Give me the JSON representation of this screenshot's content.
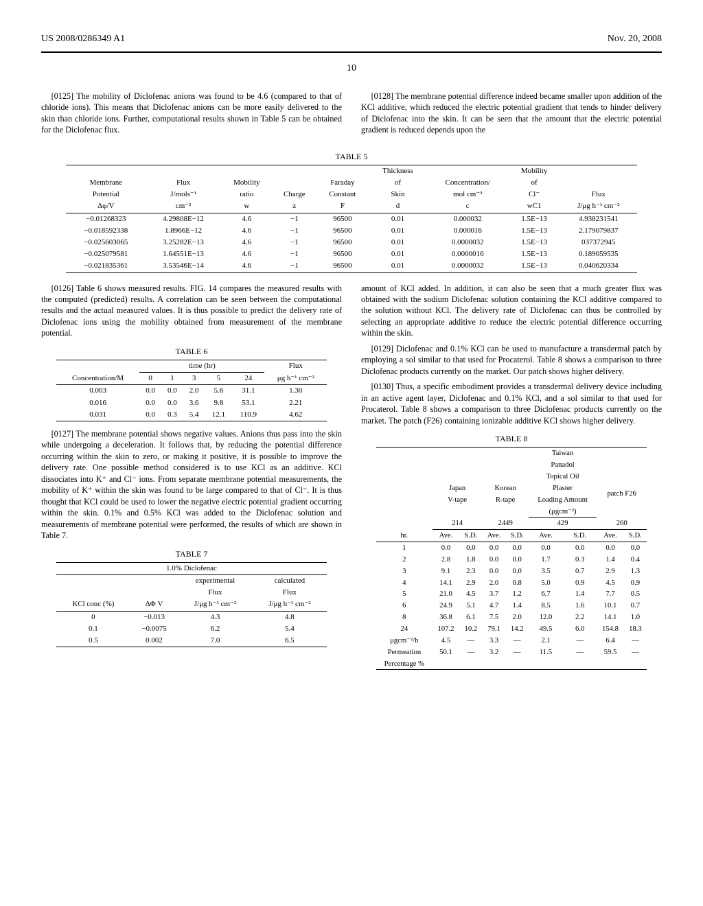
{
  "header": {
    "left": "US 2008/0286349 A1",
    "right": "Nov. 20, 2008"
  },
  "page_number": "10",
  "paras": {
    "p0125": "[0125]  The mobility of Diclofenac anions was found to be 4.6 (compared to that of chloride ions). This means that Diclofenac anions can be more easily delivered to the skin than chloride ions. Further, computational results shown in Table 5 can be obtained for the Diclofenac flux.",
    "p0126": "[0126]  Table 6 shows measured results. FIG. 14 compares the measured results with the computed (predicted) results. A correlation can be seen between the computational results and the actual measured values. It is thus possible to predict the delivery rate of Diclofenac ions using the mobility obtained from measurement of the membrane potential.",
    "p0127": "[0127]  The membrane potential shows negative values. Anions thus pass into the skin while undergoing a deceleration. It follows that, by reducing the potential difference occurring within the skin to zero, or making it positive, it is possible to improve the delivery rate. One possible method considered is to use KCl as an additive. KCl dissociates into K⁺ and Cl⁻ ions. From separate membrane potential measurements, the mobility of K⁺ within the skin was found to be large compared to that of Cl⁻. It is thus thought that KCl could be used to lower the negative electric potential gradient occurring within the skin. 0.1% and 0.5% KCl was added to the Diclofenac solution and measurements of membrane potential were performed, the results of which are shown in Table 7.",
    "p0128": "[0128]  The membrane potential difference indeed became smaller upon addition of the KCl additive, which reduced the electric potential gradient that tends to hinder delivery of Diclofenac into the skin. It can be seen that the amount that the electric potential gradient is reduced depends upon the",
    "p_cont": "amount of KCl added. In addition, it can also be seen that a much greater flux was obtained with the sodium Diclofenac solution containing the KCl additive compared to the solution without KCl. The delivery rate of Diclofenac can thus be controlled by selecting an appropriate additive to reduce the electric potential difference occurring within the skin.",
    "p0129": "[0129]  Diclofenac and 0.1% KCl can be used to manufacture a transdermal patch by employing a sol similar to that used for Procaterol. Table 8 shows a comparison to three Diclofenac products currently on the market. Our patch shows higher delivery.",
    "p0130": "[0130]  Thus, a specific embodiment provides a transdermal delivery device including in an active agent layer, Diclofenac and 0.1% KCl, and a sol similar to that used for Procaterol. Table 8 shows a comparison to three Diclofenac products currently on the market. The patch (F26) containing ionizable additive KCl shows higher delivery."
  },
  "table5": {
    "caption": "TABLE 5",
    "headers": [
      [
        "Membrane",
        "Potential",
        "Δφ/V"
      ],
      [
        "Flux",
        "J/mols⁻¹",
        "cm⁻²"
      ],
      [
        "Mobility",
        "ratio",
        "w"
      ],
      [
        "",
        "Charge",
        "z"
      ],
      [
        "Faraday",
        "Constant",
        "F"
      ],
      [
        "Thickness",
        "of",
        "Skin",
        "d"
      ],
      [
        "Concentration/",
        "mol cm⁻³",
        "c"
      ],
      [
        "Mobility",
        "of",
        "Cl⁻",
        "wC1"
      ],
      [
        "",
        "Flux",
        "J/μg h⁻¹ cm⁻²"
      ]
    ],
    "rows": [
      [
        "−0.01268323",
        "4.29808E−12",
        "4.6",
        "−1",
        "96500",
        "0.01",
        "0.000032",
        "1.5E−13",
        "4.938231541"
      ],
      [
        "−0.018592338",
        "1.8966E−12",
        "4.6",
        "−1",
        "96500",
        "0.01",
        "0.000016",
        "1.5E−13",
        "2.179079837"
      ],
      [
        "−0.025603065",
        "3.25282E−13",
        "4.6",
        "−1",
        "96500",
        "0.01",
        "0.0000032",
        "1.5E−13",
        "037372945"
      ],
      [
        "−0.025079581",
        "1.64551E−13",
        "4.6",
        "−1",
        "96500",
        "0.01",
        "0.0000016",
        "1.5E−13",
        "0.189059535"
      ],
      [
        "−0.021835361",
        "3.53546E−14",
        "4.6",
        "−1",
        "96500",
        "0.01",
        "0.0000032",
        "1.5E−13",
        "0.040620334"
      ]
    ]
  },
  "table6": {
    "caption": "TABLE 6",
    "time_header": "time (hr)",
    "flux_header": "Flux",
    "conc_header": "Concentration/M",
    "time_cols": [
      "0",
      "1",
      "3",
      "5",
      "24"
    ],
    "flux_unit": "μg h⁻¹ cm⁻²",
    "rows": [
      [
        "0.003",
        "0.0",
        "0.0",
        "2.0",
        "5.6",
        "31.1",
        "1.30"
      ],
      [
        "0.016",
        "0.0",
        "0.0",
        "3.6",
        "9.8",
        "53.1",
        "2.21"
      ],
      [
        "0.031",
        "0.0",
        "0.3",
        "5.4",
        "12.1",
        "110.9",
        "4.62"
      ]
    ]
  },
  "table7": {
    "caption": "TABLE 7",
    "group_header": "1.0% Diclofenac",
    "col_headers": [
      "KCl conc (%)",
      "ΔΦ V",
      "experimental Flux J/μg h⁻¹ cm⁻²",
      "calculated Flux J/μg h⁻¹ cm⁻²"
    ],
    "col_hdr_stack": [
      [
        "",
        "",
        "experimental",
        "calculated"
      ],
      [
        "",
        "",
        "Flux",
        "Flux"
      ],
      [
        "KCl conc (%)",
        "ΔΦ V",
        "J/μg h⁻¹ cm⁻²",
        "J/μg h⁻¹ cm⁻²"
      ]
    ],
    "rows": [
      [
        "0",
        "−0.013",
        "4.3",
        "4.8"
      ],
      [
        "0.1",
        "−0.0075",
        "6.2",
        "5.4"
      ],
      [
        "0.5",
        "0.002",
        "7.0",
        "6.5"
      ]
    ]
  },
  "table8": {
    "caption": "TABLE 8",
    "group_stack_lines": [
      "Taiwan",
      "Panadol",
      "Topical Oil",
      "Plaster"
    ],
    "group_left": [
      "Japan",
      "V-tape"
    ],
    "group_mid": [
      "Korean",
      "R-tape"
    ],
    "group_right": "patch F26",
    "loading_lines": [
      "Loading Amount",
      "(μgcm⁻²)"
    ],
    "loading_values": [
      "214",
      "2449",
      "429",
      "260"
    ],
    "hr_label": "hr.",
    "pair_labels": [
      "Ave.",
      "S.D."
    ],
    "rows": [
      [
        "1",
        "0.0",
        "0.0",
        "0.0",
        "0.0",
        "0.0",
        "0.0",
        "0.0",
        "0.0"
      ],
      [
        "2",
        "2.8",
        "1.8",
        "0.0",
        "0.0",
        "1.7",
        "0.3",
        "1.4",
        "0.4"
      ],
      [
        "3",
        "9.1",
        "2.3",
        "0.0",
        "0.0",
        "3.5",
        "0.7",
        "2.9",
        "1.3"
      ],
      [
        "4",
        "14.1",
        "2.9",
        "2.0",
        "0.8",
        "5.0",
        "0.9",
        "4.5",
        "0.9"
      ],
      [
        "5",
        "21.0",
        "4.5",
        "3.7",
        "1.2",
        "6.7",
        "1.4",
        "7.7",
        "0.5"
      ],
      [
        "6",
        "24.9",
        "5.1",
        "4.7",
        "1.4",
        "8.5",
        "1.6",
        "10.1",
        "0.7"
      ],
      [
        "8",
        "36.8",
        "6.1",
        "7.5",
        "2.0",
        "12.0",
        "2.2",
        "14.1",
        "1.0"
      ],
      [
        "24",
        "107.2",
        "10.2",
        "79.1",
        "14.2",
        "49.5",
        "6.0",
        "154.8",
        "18.3"
      ],
      [
        "μgcm⁻²/h",
        "4.5",
        "—",
        "3.3",
        "—",
        "2.1",
        "—",
        "6.4",
        "—"
      ],
      [
        "Permeation",
        "50.1",
        "—",
        "3.2",
        "—",
        "11.5",
        "—",
        "59.5",
        "—"
      ],
      [
        "Percentage %",
        "",
        "",
        "",
        "",
        "",
        "",
        "",
        ""
      ]
    ]
  }
}
